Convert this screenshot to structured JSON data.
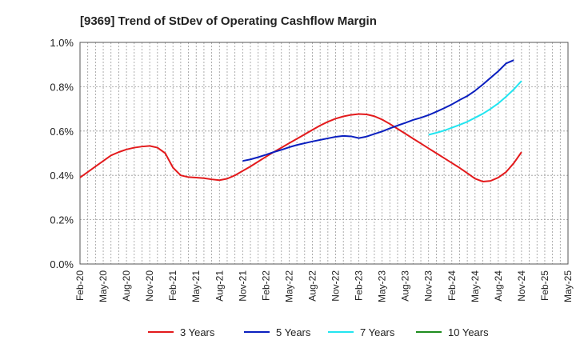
{
  "chart_data": {
    "type": "line",
    "title": "[9369]  Trend of StDev of Operating Cashflow Margin",
    "xlabel": "",
    "ylabel": "",
    "ylim": [
      0,
      1.0
    ],
    "y_ticks": [
      "0.0%",
      "0.2%",
      "0.4%",
      "0.6%",
      "0.8%",
      "1.0%"
    ],
    "x_ticks": [
      "Feb-20",
      "May-20",
      "Aug-20",
      "Nov-20",
      "Feb-21",
      "May-21",
      "Aug-21",
      "Nov-21",
      "Feb-22",
      "May-22",
      "Aug-22",
      "Nov-22",
      "Feb-23",
      "May-23",
      "Aug-23",
      "Nov-23",
      "Feb-24",
      "May-24",
      "Aug-24",
      "Nov-24",
      "Feb-25",
      "May-25"
    ],
    "grid": true,
    "legend_position": "bottom",
    "series": [
      {
        "name": "3 Years",
        "color": "#e31a1c",
        "points": [
          [
            "Feb-20",
            0.39
          ],
          [
            "Mar-20",
            0.415
          ],
          [
            "Apr-20",
            0.44
          ],
          [
            "May-20",
            0.465
          ],
          [
            "Jun-20",
            0.49
          ],
          [
            "Jul-20",
            0.505
          ],
          [
            "Aug-20",
            0.517
          ],
          [
            "Sep-20",
            0.525
          ],
          [
            "Oct-20",
            0.53
          ],
          [
            "Nov-20",
            0.533
          ],
          [
            "Dec-20",
            0.525
          ],
          [
            "Jan-21",
            0.5
          ],
          [
            "Feb-21",
            0.435
          ],
          [
            "Mar-21",
            0.4
          ],
          [
            "Apr-21",
            0.392
          ],
          [
            "May-21",
            0.39
          ],
          [
            "Jun-21",
            0.387
          ],
          [
            "Jul-21",
            0.382
          ],
          [
            "Aug-21",
            0.378
          ],
          [
            "Sep-21",
            0.385
          ],
          [
            "Oct-21",
            0.4
          ],
          [
            "Nov-21",
            0.42
          ],
          [
            "Dec-21",
            0.44
          ],
          [
            "Jan-22",
            0.462
          ],
          [
            "Feb-22",
            0.484
          ],
          [
            "Mar-22",
            0.505
          ],
          [
            "Apr-22",
            0.525
          ],
          [
            "May-22",
            0.545
          ],
          [
            "Jun-22",
            0.565
          ],
          [
            "Jul-22",
            0.585
          ],
          [
            "Aug-22",
            0.605
          ],
          [
            "Sep-22",
            0.625
          ],
          [
            "Oct-22",
            0.642
          ],
          [
            "Nov-22",
            0.656
          ],
          [
            "Dec-22",
            0.666
          ],
          [
            "Jan-23",
            0.673
          ],
          [
            "Feb-23",
            0.677
          ],
          [
            "Mar-23",
            0.675
          ],
          [
            "Apr-23",
            0.667
          ],
          [
            "May-23",
            0.652
          ],
          [
            "Jun-23",
            0.632
          ],
          [
            "Jul-23",
            0.61
          ],
          [
            "Aug-23",
            0.588
          ],
          [
            "Sep-23",
            0.566
          ],
          [
            "Oct-23",
            0.544
          ],
          [
            "Nov-23",
            0.522
          ],
          [
            "Dec-23",
            0.5
          ],
          [
            "Jan-24",
            0.478
          ],
          [
            "Feb-24",
            0.456
          ],
          [
            "Mar-24",
            0.434
          ],
          [
            "Apr-24",
            0.41
          ],
          [
            "May-24",
            0.385
          ],
          [
            "Jun-24",
            0.372
          ],
          [
            "Jul-24",
            0.375
          ],
          [
            "Aug-24",
            0.39
          ],
          [
            "Sep-24",
            0.415
          ],
          [
            "Oct-24",
            0.455
          ],
          [
            "Nov-24",
            0.505
          ]
        ]
      },
      {
        "name": "5 Years",
        "color": "#0a1fbf",
        "points": [
          [
            "Nov-21",
            0.465
          ],
          [
            "Dec-21",
            0.472
          ],
          [
            "Jan-22",
            0.482
          ],
          [
            "Feb-22",
            0.493
          ],
          [
            "Mar-22",
            0.505
          ],
          [
            "Apr-22",
            0.515
          ],
          [
            "May-22",
            0.527
          ],
          [
            "Jun-22",
            0.537
          ],
          [
            "Jul-22",
            0.545
          ],
          [
            "Aug-22",
            0.553
          ],
          [
            "Sep-22",
            0.56
          ],
          [
            "Oct-22",
            0.567
          ],
          [
            "Nov-22",
            0.574
          ],
          [
            "Dec-22",
            0.578
          ],
          [
            "Jan-23",
            0.576
          ],
          [
            "Feb-23",
            0.568
          ],
          [
            "Mar-23",
            0.575
          ],
          [
            "Apr-23",
            0.587
          ],
          [
            "May-23",
            0.598
          ],
          [
            "Jun-23",
            0.612
          ],
          [
            "Jul-23",
            0.625
          ],
          [
            "Aug-23",
            0.637
          ],
          [
            "Sep-23",
            0.65
          ],
          [
            "Oct-23",
            0.66
          ],
          [
            "Nov-23",
            0.672
          ],
          [
            "Dec-23",
            0.687
          ],
          [
            "Jan-24",
            0.703
          ],
          [
            "Feb-24",
            0.72
          ],
          [
            "Mar-24",
            0.74
          ],
          [
            "Apr-24",
            0.758
          ],
          [
            "May-24",
            0.782
          ],
          [
            "Jun-24",
            0.81
          ],
          [
            "Jul-24",
            0.84
          ],
          [
            "Aug-24",
            0.87
          ],
          [
            "Sep-24",
            0.905
          ],
          [
            "Oct-24",
            0.92
          ]
        ]
      },
      {
        "name": "7 Years",
        "color": "#22e5f0",
        "points": [
          [
            "Nov-23",
            0.583
          ],
          [
            "Dec-23",
            0.592
          ],
          [
            "Jan-24",
            0.602
          ],
          [
            "Feb-24",
            0.615
          ],
          [
            "Mar-24",
            0.628
          ],
          [
            "Apr-24",
            0.642
          ],
          [
            "May-24",
            0.66
          ],
          [
            "Jun-24",
            0.678
          ],
          [
            "Jul-24",
            0.7
          ],
          [
            "Aug-24",
            0.725
          ],
          [
            "Sep-24",
            0.755
          ],
          [
            "Oct-24",
            0.788
          ],
          [
            "Nov-24",
            0.826
          ]
        ]
      },
      {
        "name": "10 Years",
        "color": "#1e8c1e",
        "points": []
      }
    ]
  }
}
